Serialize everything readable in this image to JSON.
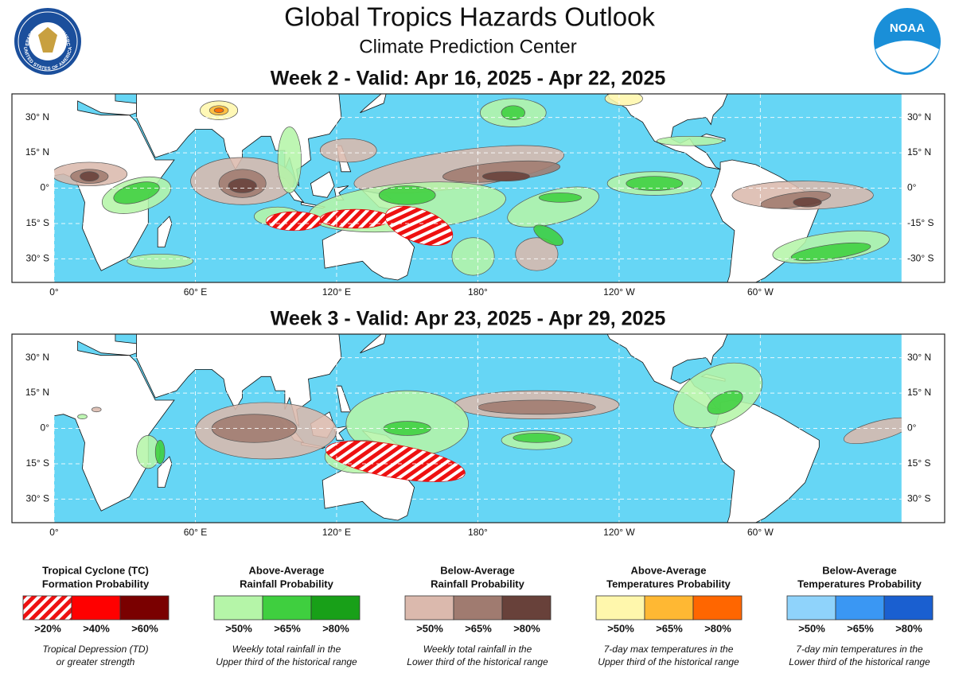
{
  "header": {
    "title": "Global Tropics Hazards Outlook",
    "subtitle": "Climate Prediction Center"
  },
  "logos": {
    "seal_top": "DEPARTMENT OF COMMERCE",
    "seal_bottom": "UNITED STATES OF AMERICA",
    "noaa": "NOAA"
  },
  "maps": [
    {
      "title": "Week 2 - Valid: Apr 16, 2025 - Apr 22, 2025",
      "lat_labels_left": [
        "30° N",
        "15° N",
        "0°",
        "15° S",
        "30° S"
      ],
      "lat_labels_right": [
        "30° N",
        "15° N",
        "0°",
        "-15° S",
        "-30° S"
      ]
    },
    {
      "title": "Week 3 - Valid: Apr 23, 2025 - Apr 29, 2025",
      "lat_labels_left": [
        "30° N",
        "15° N",
        "0°",
        "15° S",
        "30° S"
      ],
      "lat_labels_right": [
        "30° N",
        "15° N",
        "0°",
        "15° S",
        "30° S"
      ]
    }
  ],
  "lon_labels": [
    "0°",
    "60° E",
    "120° E",
    "180°",
    "120° W",
    "60° W"
  ],
  "legend": [
    {
      "title": [
        "Tropical Cyclone (TC)",
        "Formation Probability"
      ],
      "levels": [
        ">20%",
        ">40%",
        ">60%"
      ],
      "note": [
        "Tropical Depression (TD)",
        "or greater strength"
      ]
    },
    {
      "title": [
        "Above-Average",
        "Rainfall Probability"
      ],
      "levels": [
        ">50%",
        ">65%",
        ">80%"
      ],
      "note": [
        "Weekly total rainfall in the",
        "Upper third of the historical range"
      ]
    },
    {
      "title": [
        "Below-Average",
        "Rainfall Probability"
      ],
      "levels": [
        ">50%",
        ">65%",
        ">80%"
      ],
      "note": [
        "Weekly total rainfall in the",
        "Lower third of the historical range"
      ]
    },
    {
      "title": [
        "Above-Average",
        "Temperatures Probability"
      ],
      "levels": [
        ">50%",
        ">65%",
        ">80%"
      ],
      "note": [
        "7-day max temperatures in the",
        "Upper third of the historical range"
      ]
    },
    {
      "title": [
        "Below-Average",
        "Temperatures Probability"
      ],
      "levels": [
        ">50%",
        ">65%",
        ">80%"
      ],
      "note": [
        "7-day min temperatures in the",
        "Lower third of the historical range"
      ]
    }
  ]
}
